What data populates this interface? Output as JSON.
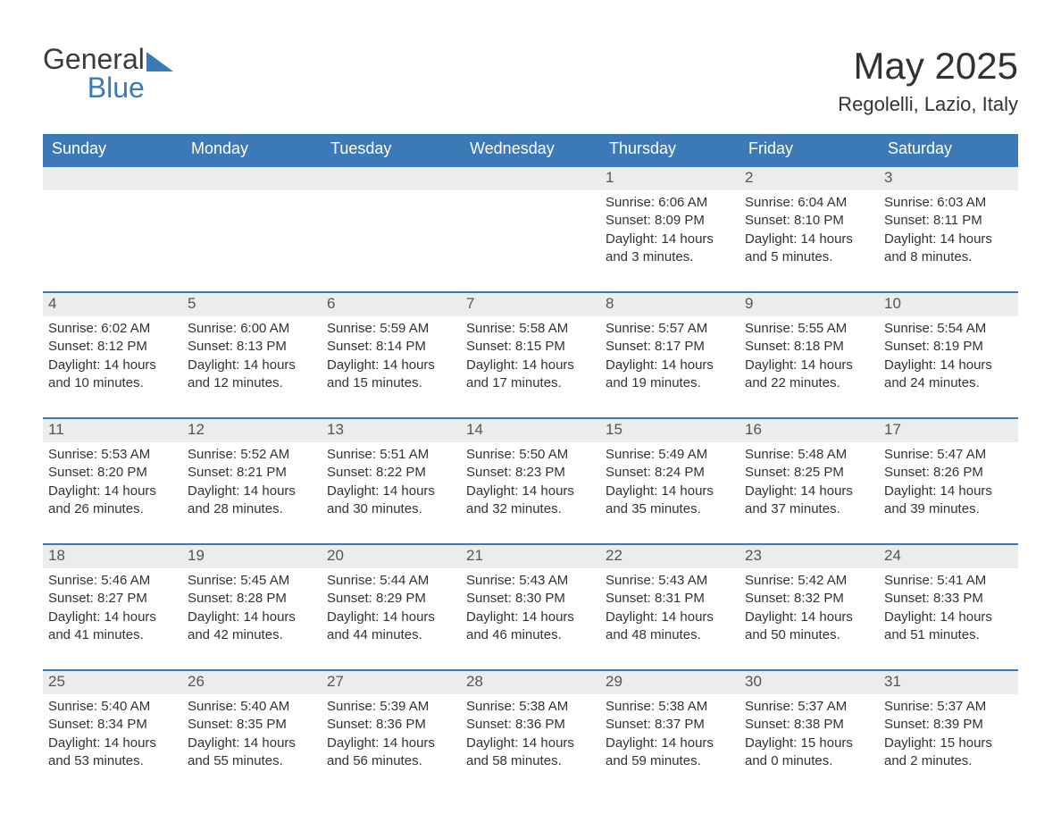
{
  "logo": {
    "line1": "General",
    "line2": "   Blue"
  },
  "header": {
    "month_year": "May 2025",
    "location": "Regolelli, Lazio, Italy"
  },
  "colors": {
    "header_bg": "#3b79b7",
    "header_text": "#ffffff",
    "day_bar_bg": "#ececec",
    "day_bar_border": "#3b79b7",
    "body_text": "#333333"
  },
  "weekdays": [
    "Sunday",
    "Monday",
    "Tuesday",
    "Wednesday",
    "Thursday",
    "Friday",
    "Saturday"
  ],
  "weeks": [
    [
      {
        "day": "",
        "sunrise": "",
        "sunset": "",
        "daylight": ""
      },
      {
        "day": "",
        "sunrise": "",
        "sunset": "",
        "daylight": ""
      },
      {
        "day": "",
        "sunrise": "",
        "sunset": "",
        "daylight": ""
      },
      {
        "day": "",
        "sunrise": "",
        "sunset": "",
        "daylight": ""
      },
      {
        "day": "1",
        "sunrise": "Sunrise: 6:06 AM",
        "sunset": "Sunset: 8:09 PM",
        "daylight": "Daylight: 14 hours and 3 minutes."
      },
      {
        "day": "2",
        "sunrise": "Sunrise: 6:04 AM",
        "sunset": "Sunset: 8:10 PM",
        "daylight": "Daylight: 14 hours and 5 minutes."
      },
      {
        "day": "3",
        "sunrise": "Sunrise: 6:03 AM",
        "sunset": "Sunset: 8:11 PM",
        "daylight": "Daylight: 14 hours and 8 minutes."
      }
    ],
    [
      {
        "day": "4",
        "sunrise": "Sunrise: 6:02 AM",
        "sunset": "Sunset: 8:12 PM",
        "daylight": "Daylight: 14 hours and 10 minutes."
      },
      {
        "day": "5",
        "sunrise": "Sunrise: 6:00 AM",
        "sunset": "Sunset: 8:13 PM",
        "daylight": "Daylight: 14 hours and 12 minutes."
      },
      {
        "day": "6",
        "sunrise": "Sunrise: 5:59 AM",
        "sunset": "Sunset: 8:14 PM",
        "daylight": "Daylight: 14 hours and 15 minutes."
      },
      {
        "day": "7",
        "sunrise": "Sunrise: 5:58 AM",
        "sunset": "Sunset: 8:15 PM",
        "daylight": "Daylight: 14 hours and 17 minutes."
      },
      {
        "day": "8",
        "sunrise": "Sunrise: 5:57 AM",
        "sunset": "Sunset: 8:17 PM",
        "daylight": "Daylight: 14 hours and 19 minutes."
      },
      {
        "day": "9",
        "sunrise": "Sunrise: 5:55 AM",
        "sunset": "Sunset: 8:18 PM",
        "daylight": "Daylight: 14 hours and 22 minutes."
      },
      {
        "day": "10",
        "sunrise": "Sunrise: 5:54 AM",
        "sunset": "Sunset: 8:19 PM",
        "daylight": "Daylight: 14 hours and 24 minutes."
      }
    ],
    [
      {
        "day": "11",
        "sunrise": "Sunrise: 5:53 AM",
        "sunset": "Sunset: 8:20 PM",
        "daylight": "Daylight: 14 hours and 26 minutes."
      },
      {
        "day": "12",
        "sunrise": "Sunrise: 5:52 AM",
        "sunset": "Sunset: 8:21 PM",
        "daylight": "Daylight: 14 hours and 28 minutes."
      },
      {
        "day": "13",
        "sunrise": "Sunrise: 5:51 AM",
        "sunset": "Sunset: 8:22 PM",
        "daylight": "Daylight: 14 hours and 30 minutes."
      },
      {
        "day": "14",
        "sunrise": "Sunrise: 5:50 AM",
        "sunset": "Sunset: 8:23 PM",
        "daylight": "Daylight: 14 hours and 32 minutes."
      },
      {
        "day": "15",
        "sunrise": "Sunrise: 5:49 AM",
        "sunset": "Sunset: 8:24 PM",
        "daylight": "Daylight: 14 hours and 35 minutes."
      },
      {
        "day": "16",
        "sunrise": "Sunrise: 5:48 AM",
        "sunset": "Sunset: 8:25 PM",
        "daylight": "Daylight: 14 hours and 37 minutes."
      },
      {
        "day": "17",
        "sunrise": "Sunrise: 5:47 AM",
        "sunset": "Sunset: 8:26 PM",
        "daylight": "Daylight: 14 hours and 39 minutes."
      }
    ],
    [
      {
        "day": "18",
        "sunrise": "Sunrise: 5:46 AM",
        "sunset": "Sunset: 8:27 PM",
        "daylight": "Daylight: 14 hours and 41 minutes."
      },
      {
        "day": "19",
        "sunrise": "Sunrise: 5:45 AM",
        "sunset": "Sunset: 8:28 PM",
        "daylight": "Daylight: 14 hours and 42 minutes."
      },
      {
        "day": "20",
        "sunrise": "Sunrise: 5:44 AM",
        "sunset": "Sunset: 8:29 PM",
        "daylight": "Daylight: 14 hours and 44 minutes."
      },
      {
        "day": "21",
        "sunrise": "Sunrise: 5:43 AM",
        "sunset": "Sunset: 8:30 PM",
        "daylight": "Daylight: 14 hours and 46 minutes."
      },
      {
        "day": "22",
        "sunrise": "Sunrise: 5:43 AM",
        "sunset": "Sunset: 8:31 PM",
        "daylight": "Daylight: 14 hours and 48 minutes."
      },
      {
        "day": "23",
        "sunrise": "Sunrise: 5:42 AM",
        "sunset": "Sunset: 8:32 PM",
        "daylight": "Daylight: 14 hours and 50 minutes."
      },
      {
        "day": "24",
        "sunrise": "Sunrise: 5:41 AM",
        "sunset": "Sunset: 8:33 PM",
        "daylight": "Daylight: 14 hours and 51 minutes."
      }
    ],
    [
      {
        "day": "25",
        "sunrise": "Sunrise: 5:40 AM",
        "sunset": "Sunset: 8:34 PM",
        "daylight": "Daylight: 14 hours and 53 minutes."
      },
      {
        "day": "26",
        "sunrise": "Sunrise: 5:40 AM",
        "sunset": "Sunset: 8:35 PM",
        "daylight": "Daylight: 14 hours and 55 minutes."
      },
      {
        "day": "27",
        "sunrise": "Sunrise: 5:39 AM",
        "sunset": "Sunset: 8:36 PM",
        "daylight": "Daylight: 14 hours and 56 minutes."
      },
      {
        "day": "28",
        "sunrise": "Sunrise: 5:38 AM",
        "sunset": "Sunset: 8:36 PM",
        "daylight": "Daylight: 14 hours and 58 minutes."
      },
      {
        "day": "29",
        "sunrise": "Sunrise: 5:38 AM",
        "sunset": "Sunset: 8:37 PM",
        "daylight": "Daylight: 14 hours and 59 minutes."
      },
      {
        "day": "30",
        "sunrise": "Sunrise: 5:37 AM",
        "sunset": "Sunset: 8:38 PM",
        "daylight": "Daylight: 15 hours and 0 minutes."
      },
      {
        "day": "31",
        "sunrise": "Sunrise: 5:37 AM",
        "sunset": "Sunset: 8:39 PM",
        "daylight": "Daylight: 15 hours and 2 minutes."
      }
    ]
  ]
}
